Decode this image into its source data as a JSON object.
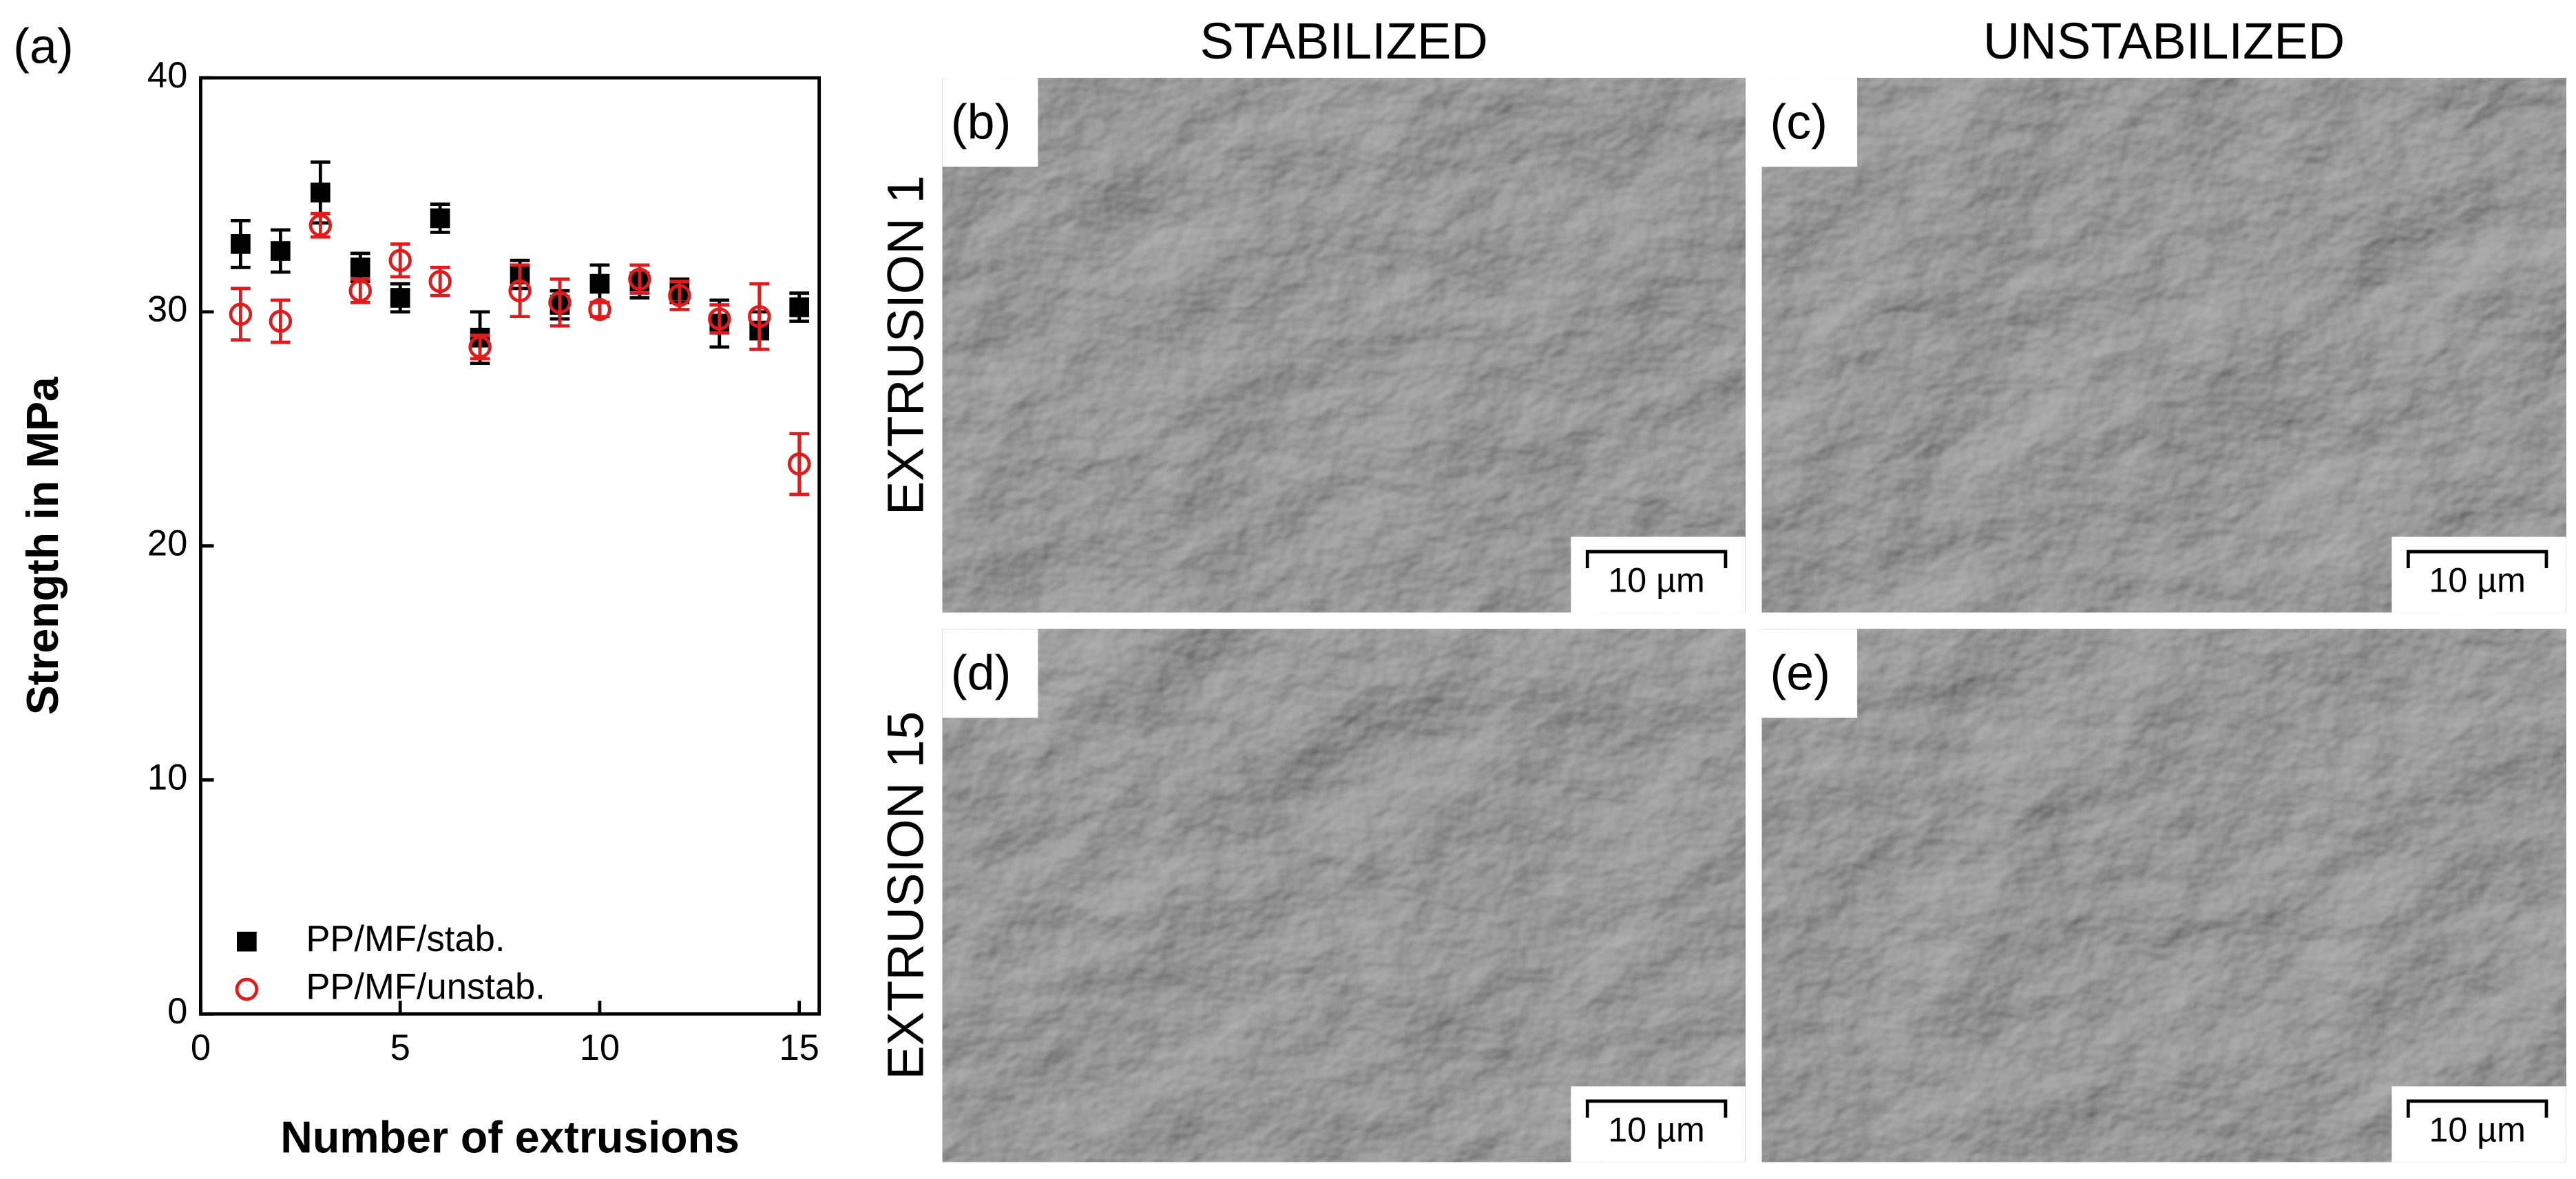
{
  "chart_data": {
    "type": "scatter",
    "label": "(a)",
    "x_label": "Number of extrusions",
    "y_label": "Strength in MPa",
    "x": [
      1,
      2,
      3,
      4,
      5,
      6,
      7,
      8,
      9,
      10,
      11,
      12,
      13,
      14,
      15
    ],
    "series": [
      {
        "name": "PP/MF/stab.",
        "color": "#000000",
        "marker": "square",
        "values": [
          32.9,
          32.6,
          35.1,
          31.9,
          30.6,
          34.0,
          28.9,
          31.6,
          30.3,
          31.2,
          31.3,
          30.9,
          29.5,
          29.2,
          30.2
        ],
        "errors": [
          1.0,
          0.9,
          1.3,
          0.6,
          0.6,
          0.6,
          1.1,
          0.6,
          0.6,
          0.8,
          0.7,
          0.5,
          1.0,
          0.8,
          0.6
        ]
      },
      {
        "name": "PP/MF/unstab.",
        "color": "#e31a1c",
        "marker": "circle",
        "values": [
          29.9,
          29.6,
          33.7,
          30.9,
          32.2,
          31.3,
          28.5,
          30.9,
          30.4,
          30.1,
          31.4,
          30.7,
          29.7,
          29.8,
          23.5
        ],
        "errors": [
          1.1,
          0.9,
          0.5,
          0.5,
          0.7,
          0.6,
          0.5,
          1.1,
          1.0,
          0.3,
          0.6,
          0.6,
          0.6,
          1.4,
          1.3
        ]
      }
    ],
    "xlim": [
      0,
      15.5
    ],
    "xticks": [
      0,
      5,
      10,
      15
    ],
    "ylim": [
      0,
      40
    ],
    "yticks": [
      0,
      10,
      20,
      30,
      40
    ],
    "legend": "lower left"
  },
  "micrographs": {
    "columns": [
      "STABILIZED",
      "UNSTABILIZED"
    ],
    "rows": [
      "EXTRUSION 1",
      "EXTRUSION 15"
    ],
    "panels": [
      {
        "label": "(b)",
        "scale_bar": "10 µm"
      },
      {
        "label": "(c)",
        "scale_bar": "10 µm"
      },
      {
        "label": "(d)",
        "scale_bar": "10 µm"
      },
      {
        "label": "(e)",
        "scale_bar": "10 µm"
      }
    ]
  }
}
